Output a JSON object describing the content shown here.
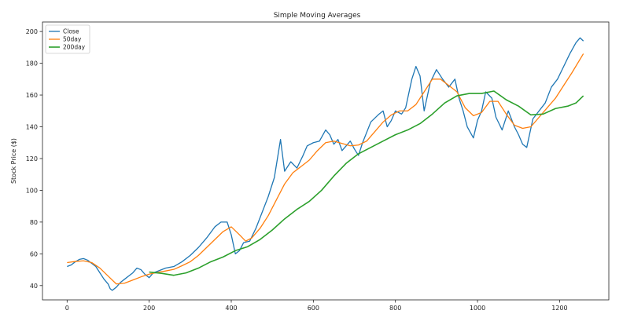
{
  "chart_data": {
    "type": "line",
    "title": "Simple Moving Averages",
    "xlabel": "",
    "ylabel": "Stock Price ($)",
    "xlim": [
      -60,
      1320
    ],
    "ylim": [
      31,
      206
    ],
    "xticks": [
      0,
      200,
      400,
      600,
      800,
      1000,
      1200
    ],
    "yticks": [
      40,
      60,
      80,
      100,
      120,
      140,
      160,
      180,
      200
    ],
    "grid": false,
    "legend_position": "top-left",
    "series": [
      {
        "name": "Close",
        "color": "#1f77b4",
        "points": [
          [
            0,
            52
          ],
          [
            10,
            53
          ],
          [
            20,
            55
          ],
          [
            30,
            56.5
          ],
          [
            40,
            57
          ],
          [
            50,
            56
          ],
          [
            60,
            54
          ],
          [
            70,
            52
          ],
          [
            80,
            48
          ],
          [
            90,
            44
          ],
          [
            100,
            41
          ],
          [
            105,
            38
          ],
          [
            110,
            37
          ],
          [
            120,
            39
          ],
          [
            130,
            42
          ],
          [
            140,
            44
          ],
          [
            150,
            46
          ],
          [
            160,
            48
          ],
          [
            170,
            51
          ],
          [
            180,
            50
          ],
          [
            190,
            47
          ],
          [
            200,
            45
          ],
          [
            210,
            48
          ],
          [
            220,
            49
          ],
          [
            240,
            51
          ],
          [
            260,
            52
          ],
          [
            280,
            55
          ],
          [
            300,
            59
          ],
          [
            320,
            64
          ],
          [
            340,
            70
          ],
          [
            360,
            77
          ],
          [
            375,
            80
          ],
          [
            390,
            80
          ],
          [
            400,
            72
          ],
          [
            410,
            60
          ],
          [
            420,
            62
          ],
          [
            430,
            67
          ],
          [
            445,
            68
          ],
          [
            460,
            76
          ],
          [
            475,
            86
          ],
          [
            490,
            96
          ],
          [
            505,
            108
          ],
          [
            515,
            124
          ],
          [
            520,
            132
          ],
          [
            530,
            112
          ],
          [
            545,
            118
          ],
          [
            560,
            114
          ],
          [
            575,
            122
          ],
          [
            585,
            128
          ],
          [
            600,
            130
          ],
          [
            615,
            131
          ],
          [
            630,
            138
          ],
          [
            640,
            135
          ],
          [
            650,
            129
          ],
          [
            660,
            132
          ],
          [
            670,
            125
          ],
          [
            680,
            128
          ],
          [
            690,
            131
          ],
          [
            700,
            126
          ],
          [
            710,
            122
          ],
          [
            720,
            130
          ],
          [
            740,
            143
          ],
          [
            760,
            148
          ],
          [
            770,
            150
          ],
          [
            780,
            140
          ],
          [
            790,
            144
          ],
          [
            800,
            150
          ],
          [
            815,
            148
          ],
          [
            825,
            152
          ],
          [
            840,
            170
          ],
          [
            850,
            178
          ],
          [
            860,
            172
          ],
          [
            870,
            150
          ],
          [
            885,
            168
          ],
          [
            900,
            176
          ],
          [
            915,
            170
          ],
          [
            930,
            165
          ],
          [
            945,
            170
          ],
          [
            955,
            158
          ],
          [
            965,
            150
          ],
          [
            975,
            140
          ],
          [
            990,
            133
          ],
          [
            1000,
            144
          ],
          [
            1010,
            150
          ],
          [
            1020,
            162
          ],
          [
            1035,
            158
          ],
          [
            1045,
            146
          ],
          [
            1060,
            138
          ],
          [
            1075,
            150
          ],
          [
            1090,
            140
          ],
          [
            1100,
            135
          ],
          [
            1110,
            129
          ],
          [
            1120,
            127
          ],
          [
            1135,
            145
          ],
          [
            1150,
            150
          ],
          [
            1165,
            155
          ],
          [
            1180,
            165
          ],
          [
            1195,
            170
          ],
          [
            1210,
            178
          ],
          [
            1225,
            186
          ],
          [
            1240,
            193
          ],
          [
            1250,
            196
          ],
          [
            1258,
            194
          ]
        ]
      },
      {
        "name": "50day",
        "color": "#ff7f0e",
        "points": [
          [
            0,
            54.5
          ],
          [
            20,
            55.2
          ],
          [
            40,
            55.6
          ],
          [
            60,
            54.5
          ],
          [
            80,
            51
          ],
          [
            100,
            46
          ],
          [
            120,
            41
          ],
          [
            140,
            41.5
          ],
          [
            160,
            43.5
          ],
          [
            180,
            45.5
          ],
          [
            200,
            47.2
          ],
          [
            220,
            48.3
          ],
          [
            240,
            49.2
          ],
          [
            260,
            50.2
          ],
          [
            280,
            52.5
          ],
          [
            300,
            55
          ],
          [
            320,
            59
          ],
          [
            340,
            64
          ],
          [
            360,
            69
          ],
          [
            380,
            74
          ],
          [
            400,
            77
          ],
          [
            420,
            72
          ],
          [
            435,
            68
          ],
          [
            450,
            70
          ],
          [
            470,
            76
          ],
          [
            490,
            84
          ],
          [
            510,
            94
          ],
          [
            530,
            104
          ],
          [
            550,
            111
          ],
          [
            570,
            115
          ],
          [
            590,
            119
          ],
          [
            610,
            125
          ],
          [
            630,
            130
          ],
          [
            650,
            131
          ],
          [
            670,
            129.5
          ],
          [
            690,
            128
          ],
          [
            710,
            128.5
          ],
          [
            730,
            131
          ],
          [
            750,
            137
          ],
          [
            770,
            143
          ],
          [
            790,
            147.5
          ],
          [
            810,
            150
          ],
          [
            830,
            150
          ],
          [
            850,
            154
          ],
          [
            870,
            162
          ],
          [
            890,
            170
          ],
          [
            910,
            170
          ],
          [
            930,
            166
          ],
          [
            950,
            162
          ],
          [
            970,
            152
          ],
          [
            990,
            147
          ],
          [
            1010,
            149
          ],
          [
            1030,
            156
          ],
          [
            1050,
            156
          ],
          [
            1070,
            148
          ],
          [
            1090,
            141
          ],
          [
            1110,
            139
          ],
          [
            1130,
            140
          ],
          [
            1150,
            146
          ],
          [
            1170,
            152
          ],
          [
            1190,
            158
          ],
          [
            1210,
            166
          ],
          [
            1230,
            174
          ],
          [
            1258,
            186
          ]
        ]
      },
      {
        "name": "200day",
        "color": "#2ca02c",
        "points": [
          [
            200,
            48.5
          ],
          [
            230,
            47.7
          ],
          [
            260,
            46.5
          ],
          [
            290,
            48
          ],
          [
            320,
            51
          ],
          [
            350,
            55
          ],
          [
            380,
            58
          ],
          [
            410,
            62
          ],
          [
            440,
            64.5
          ],
          [
            470,
            69
          ],
          [
            500,
            75
          ],
          [
            530,
            82
          ],
          [
            560,
            88
          ],
          [
            590,
            93
          ],
          [
            620,
            100
          ],
          [
            650,
            109
          ],
          [
            680,
            117
          ],
          [
            710,
            123
          ],
          [
            740,
            127
          ],
          [
            770,
            131
          ],
          [
            800,
            135
          ],
          [
            830,
            138
          ],
          [
            860,
            142
          ],
          [
            890,
            148
          ],
          [
            920,
            155
          ],
          [
            950,
            159.5
          ],
          [
            980,
            161
          ],
          [
            1010,
            161
          ],
          [
            1040,
            162.5
          ],
          [
            1070,
            157
          ],
          [
            1100,
            153
          ],
          [
            1130,
            147.5
          ],
          [
            1160,
            148
          ],
          [
            1190,
            151.5
          ],
          [
            1220,
            153
          ],
          [
            1240,
            155
          ],
          [
            1258,
            159.5
          ]
        ]
      }
    ]
  }
}
